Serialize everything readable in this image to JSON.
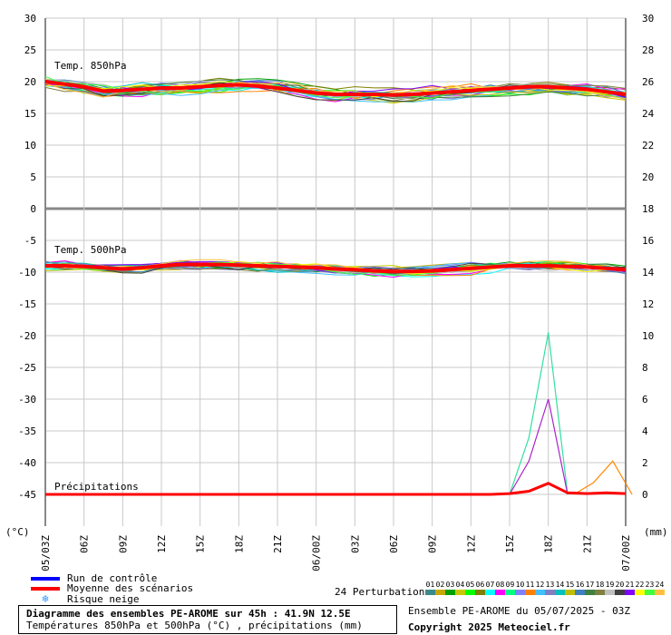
{
  "chart_data": {
    "type": "line",
    "title": "Diagramme des ensembles PE-AROME sur 45h : 41.9N 12.5E",
    "subtitle": "Températures 850hPa et 500hPa (°C) , précipitations (mm)",
    "left_axis": {
      "unit": "(°C)",
      "range": [
        -50,
        30
      ],
      "ticks": [
        30,
        25,
        20,
        15,
        10,
        5,
        0,
        -5,
        -10,
        -15,
        -20,
        -25,
        -30,
        -35,
        -40,
        -45
      ]
    },
    "right_axis": {
      "unit": "(mm)",
      "ticks": [
        30,
        28,
        26,
        24,
        22,
        20,
        18,
        16,
        14,
        12,
        10,
        8,
        6,
        4,
        2,
        0
      ]
    },
    "x_ticks": [
      "05/03Z",
      "06Z",
      "09Z",
      "12Z",
      "15Z",
      "18Z",
      "21Z",
      "06/00Z",
      "03Z",
      "06Z",
      "09Z",
      "12Z",
      "15Z",
      "18Z",
      "21Z",
      "07/00Z"
    ],
    "panels": [
      {
        "name": "Temp. 850hPa",
        "control_run": [
          20.0,
          19.6,
          19.2,
          18.6,
          18.6,
          18.8,
          19.0,
          19.0,
          19.2,
          19.4,
          19.6,
          19.4,
          19.0,
          18.6,
          18.2,
          18.0,
          18.0,
          18.0,
          17.9,
          18.0,
          18.2,
          18.4,
          18.6,
          18.8,
          19.0,
          19.2,
          19.2,
          19.0,
          18.8,
          18.4,
          18.0
        ],
        "ensemble_mean": [
          20.0,
          19.6,
          19.2,
          18.5,
          18.6,
          18.8,
          19.0,
          19.0,
          19.2,
          19.4,
          19.5,
          19.3,
          19.0,
          18.6,
          18.2,
          18.0,
          18.0,
          18.0,
          17.9,
          18.0,
          18.2,
          18.4,
          18.6,
          18.8,
          19.0,
          19.2,
          19.2,
          19.0,
          18.8,
          18.4,
          18.0
        ]
      },
      {
        "name": "Temp. 500hPa",
        "control_run": [
          -9.0,
          -9.0,
          -9.2,
          -9.4,
          -9.6,
          -9.4,
          -9.0,
          -8.8,
          -8.8,
          -8.8,
          -9.0,
          -9.0,
          -9.2,
          -9.2,
          -9.4,
          -9.6,
          -9.6,
          -9.8,
          -10.0,
          -10.0,
          -9.8,
          -9.6,
          -9.4,
          -9.2,
          -9.0,
          -9.0,
          -9.0,
          -9.2,
          -9.2,
          -9.4,
          -9.6
        ],
        "ensemble_mean": [
          -9.0,
          -9.0,
          -9.1,
          -9.3,
          -9.5,
          -9.3,
          -9.0,
          -8.8,
          -8.8,
          -8.8,
          -8.9,
          -9.0,
          -9.1,
          -9.2,
          -9.3,
          -9.5,
          -9.6,
          -9.8,
          -9.9,
          -9.9,
          -9.8,
          -9.6,
          -9.4,
          -9.2,
          -9.0,
          -9.0,
          -9.0,
          -9.1,
          -9.2,
          -9.4,
          -9.6
        ]
      },
      {
        "name": "Précipitations",
        "unit": "mm",
        "ensemble_mean": [
          0,
          0,
          0,
          0,
          0,
          0,
          0,
          0,
          0,
          0,
          0,
          0,
          0,
          0,
          0,
          0,
          0,
          0,
          0,
          0,
          0,
          0,
          0,
          0,
          0.05,
          0.2,
          0.7,
          0.1,
          0.05,
          0.1,
          0.05
        ],
        "peaks": [
          {
            "hour": 42,
            "value": 10.2,
            "color": "#33e0a0"
          },
          {
            "hour": 42,
            "value": 6.0,
            "color": "#aa22cc"
          },
          {
            "hour": 47,
            "value": 2.1,
            "color": "#ff8800"
          }
        ]
      }
    ],
    "x_hours": [
      3,
      4.5,
      6,
      7.5,
      9,
      10.5,
      12,
      13.5,
      15,
      16.5,
      18,
      19.5,
      21,
      22.5,
      24,
      25.5,
      27,
      28.5,
      30,
      31.5,
      33,
      34.5,
      36,
      37.5,
      39,
      40.5,
      42,
      43.5,
      45,
      46.5,
      48
    ],
    "grid": true
  },
  "legend": {
    "control": "Run de contrôle",
    "mean": "Moyenne des scénarios",
    "snow": "Risque neige",
    "control_color": "#0000ff",
    "mean_color": "#ff0000"
  },
  "perturbations": {
    "label": "24 Perturbations",
    "numbers": [
      "01",
      "02",
      "03",
      "04",
      "05",
      "06",
      "07",
      "08",
      "09",
      "10",
      "11",
      "12",
      "13",
      "14",
      "15",
      "16",
      "17",
      "18",
      "19",
      "20",
      "21",
      "22",
      "23",
      "24"
    ],
    "colors": [
      "#3b8a8a",
      "#c8a800",
      "#00a000",
      "#c8c800",
      "#00ff00",
      "#808000",
      "#00ffff",
      "#ff00ff",
      "#00ff80",
      "#8080ff",
      "#ff8000",
      "#40c0ff",
      "#8080c0",
      "#00c0c0",
      "#c0c000",
      "#4080c0",
      "#408040",
      "#808040",
      "#c0c0c0",
      "#404040",
      "#8000ff",
      "#ffff00",
      "#40ff40",
      "#ffc040"
    ]
  },
  "footer": {
    "title": "Diagramme des ensembles PE-AROME sur 45h : 41.9N 12.5E",
    "subtitle": "Températures 850hPa et 500hPa (°C) , précipitations (mm)",
    "ensemble": "Ensemble PE-AROME du 05/07/2025 - 03Z",
    "copyright": "Copyright 2025 Meteociel.fr"
  }
}
